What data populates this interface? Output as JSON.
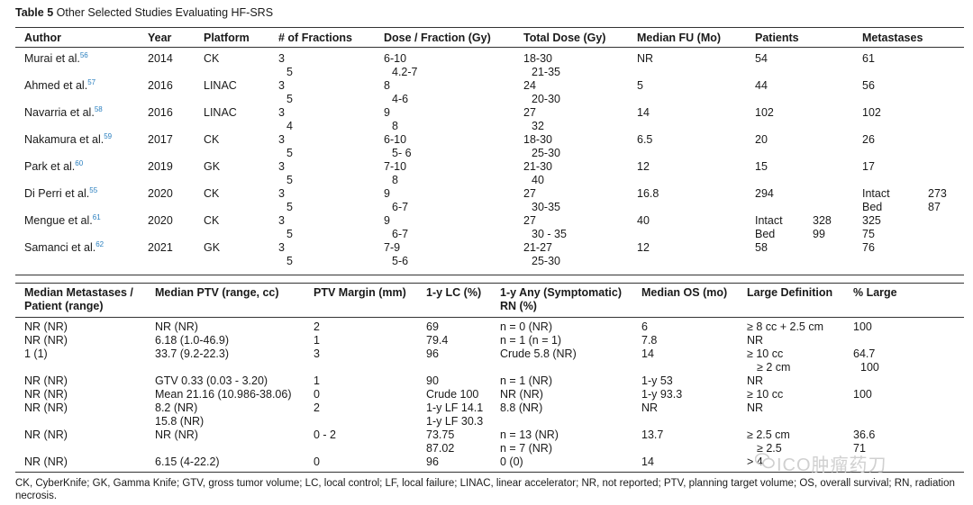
{
  "title": {
    "label": "Table 5",
    "text": "Other Selected Studies Evaluating HF-SRS"
  },
  "table1": {
    "headers": [
      "Author",
      "Year",
      "Platform",
      "# of Fractions",
      "Dose / Fraction (Gy)",
      "Total Dose (Gy)",
      "Median FU (Mo)",
      "Patients",
      "Metastases"
    ],
    "rows": [
      {
        "author": "Murai et al.",
        "ref": "56",
        "year": "2014",
        "platform": "CK",
        "fr1": "3",
        "fr2": "5",
        "dpf1": "6-10",
        "dpf2": "4.2-7",
        "td1": "18-30",
        "td2": "21-35",
        "fu": "NR",
        "pat": "54",
        "met": "61"
      },
      {
        "author": "Ahmed et al.",
        "ref": "57",
        "year": "2016",
        "platform": "LINAC",
        "fr1": "3",
        "fr2": "5",
        "dpf1": "8",
        "dpf2": "4-6",
        "td1": "24",
        "td2": "20-30",
        "fu": "5",
        "pat": "44",
        "met": "56"
      },
      {
        "author": "Navarria et al.",
        "ref": "58",
        "year": "2016",
        "platform": "LINAC",
        "fr1": "3",
        "fr2": "4",
        "dpf1": "9",
        "dpf2": "8",
        "td1": "27",
        "td2": "32",
        "fu": "14",
        "pat": "102",
        "met": "102"
      },
      {
        "author": "Nakamura et al.",
        "ref": "59",
        "year": "2017",
        "platform": "CK",
        "fr1": "3",
        "fr2": "5",
        "dpf1": "6-10",
        "dpf2": "5- 6",
        "td1": "18-30",
        "td2": "25-30",
        "fu": "6.5",
        "pat": "20",
        "met": "26"
      },
      {
        "author": "Park et al.",
        "ref": "60",
        "year": "2019",
        "platform": "GK",
        "fr1": "3",
        "fr2": "5",
        "dpf1": "7-10",
        "dpf2": "8",
        "td1": "21-30",
        "td2": "40",
        "fu": "12",
        "pat": "15",
        "met": "17"
      },
      {
        "author": "Di Perri et al.",
        "ref": "55",
        "year": "2020",
        "platform": "CK",
        "fr1": "3",
        "fr2": "5",
        "dpf1": "9",
        "dpf2": "6-7",
        "td1": "27",
        "td2": "30-35",
        "fu": "16.8",
        "pat": "294",
        "met_a_label": "Intact",
        "met_a": "273",
        "met_b_label": "Bed",
        "met_b": "87"
      },
      {
        "author": "Mengue et al.",
        "ref": "61",
        "year": "2020",
        "platform": "CK",
        "fr1": "3",
        "fr2": "5",
        "dpf1": "9",
        "dpf2": "6-7",
        "td1": "27",
        "td2": "30 - 35",
        "fu": "40",
        "pat_a_label": "Intact",
        "pat_a": "328",
        "pat_b_label": "Bed",
        "pat_b": "99",
        "met1": "325",
        "met2": "75"
      },
      {
        "author": "Samanci et al.",
        "ref": "62",
        "year": "2021",
        "platform": "GK",
        "fr1": "3",
        "fr2": "5",
        "dpf1": "7-9",
        "dpf2": "5-6",
        "td1": "21-27",
        "td2": "25-30",
        "fu": "12",
        "pat": "58",
        "met": "76"
      }
    ]
  },
  "table2": {
    "headers": [
      "Median Metastases /",
      "Patient (range)",
      "Median PTV (range, cc)",
      "PTV Margin (mm)",
      "1-y LC (%)",
      "1-y Any (Symptomatic)",
      "RN (%)",
      "Median OS (mo)",
      "Large Definition",
      "% Large"
    ],
    "rows": [
      {
        "mm": "NR (NR)",
        "ptv": "NR (NR)",
        "margin": "2",
        "lc": "69",
        "rn": "n = 0 (NR)",
        "os": "6",
        "ld": "≥ 8 cc + 2.5 cm",
        "pl": "100"
      },
      {
        "mm": "NR (NR)",
        "ptv": "6.18 (1.0-46.9)",
        "margin": "1",
        "lc": "79.4",
        "rn": "n = 1 (n = 1)",
        "os": "7.8",
        "ld": "NR",
        "pl": ""
      },
      {
        "mm": "1 (1)",
        "ptv": "33.7 (9.2-22.3)",
        "margin": "3",
        "lc": "96",
        "rn": "Crude 5.8 (NR)",
        "os": "14",
        "ld": "≥ 10 cc",
        "ld2": "≥ 2 cm",
        "pl": "64.7",
        "pl2": "100"
      },
      {
        "mm": "NR (NR)",
        "ptv": "GTV 0.33 (0.03 - 3.20)",
        "margin": "1",
        "lc": "90",
        "rn": "n = 1 (NR)",
        "os": "1-y 53",
        "ld": "NR",
        "pl": ""
      },
      {
        "mm": "NR (NR)",
        "ptv": "Mean 21.16 (10.986-38.06)",
        "margin": "0",
        "lc": "Crude 100",
        "rn": "NR (NR)",
        "os": "1-y 93.3",
        "ld": "≥ 10 cc",
        "pl": "100"
      },
      {
        "mm": "NR (NR)",
        "ptv": "8.2 (NR)",
        "ptv2": "15.8 (NR)",
        "margin": "2",
        "lc": "1-y LF 14.1",
        "lc2": "1-y LF 30.3",
        "rn": "8.8 (NR)",
        "os": "NR",
        "ld": "NR",
        "pl": ""
      },
      {
        "mm": "NR (NR)",
        "ptv": "NR (NR)",
        "margin": "0 - 2",
        "lc": "73.75",
        "lc2": "87.02",
        "rn": "n = 13 (NR)",
        "rn2": "n = 7 (NR)",
        "os": "13.7",
        "ld": "≥ 2.5 cm",
        "ld2": "≥ 2.5",
        "pl": "36.6",
        "pl2": "71"
      },
      {
        "mm": "NR (NR)",
        "ptv": "6.15 (4-22.2)",
        "margin": "0",
        "lc": "96",
        "rn": "0 (0)",
        "os": "14",
        "ld": "> 4 c",
        "pl": ""
      }
    ]
  },
  "footnote": "CK, CyberKnife; GK, Gamma Knife; GTV, gross tumor volume; LC, local control; LF, local failure; LINAC, linear accelerator; NR, not reported; PTV, planning target volume; OS, overall survival; RN, radiation necrosis.",
  "watermark": "ICO肿瘤药刀"
}
